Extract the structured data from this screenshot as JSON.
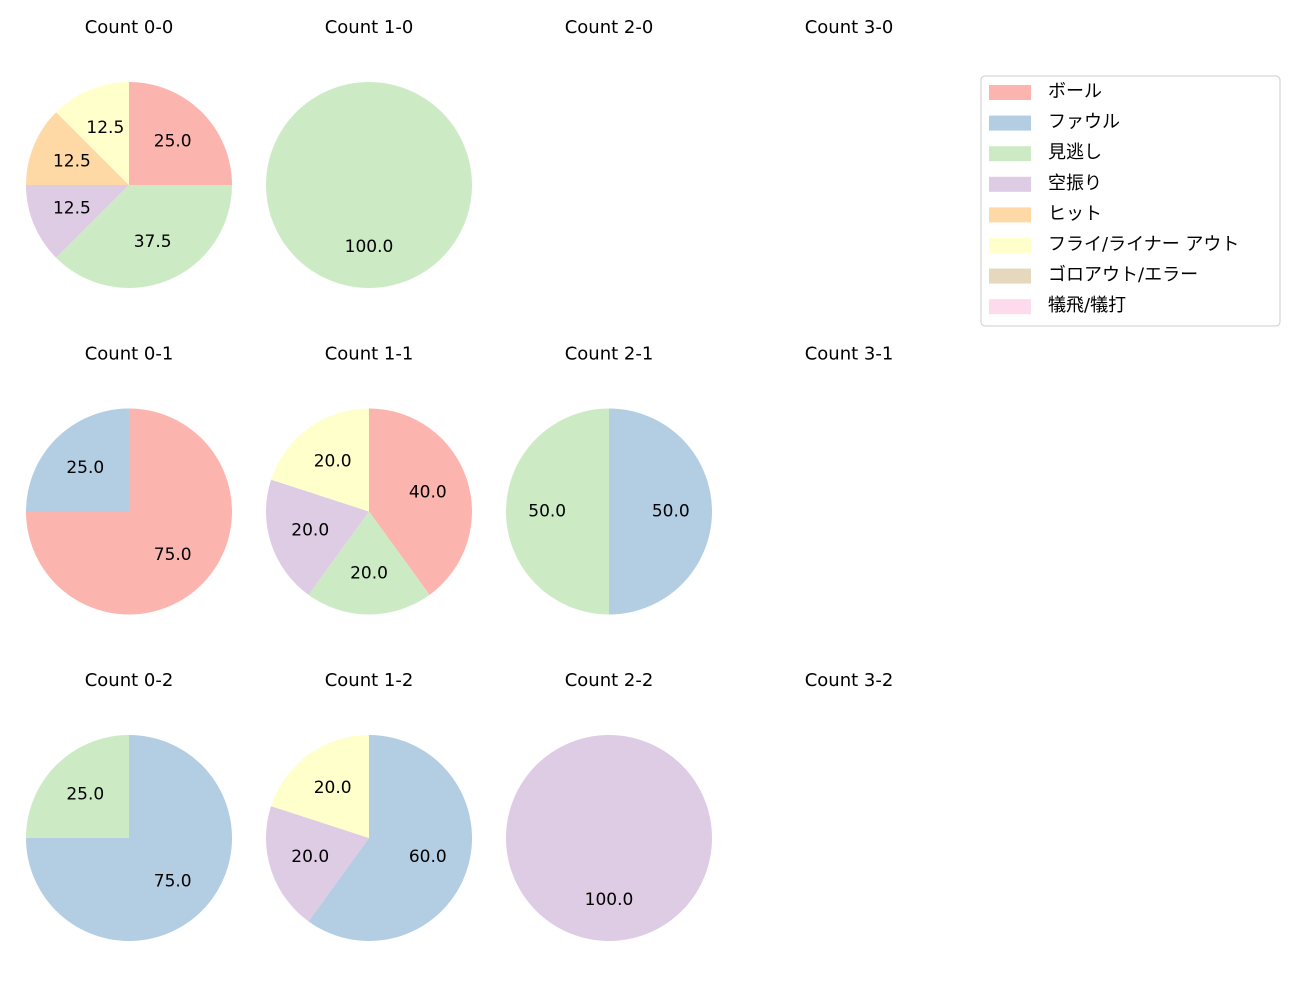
{
  "chart_data": [
    {
      "type": "pie",
      "title": "Count 0-0",
      "categories": [
        "ボール",
        "見逃し",
        "空振り",
        "ヒット",
        "フライ/ライナー アウト"
      ],
      "values": [
        25,
        37.5,
        12.5,
        12.5,
        12.5
      ],
      "value_labels": [
        "25.0",
        "37.5",
        "12.5",
        "12.5",
        "12.5"
      ],
      "colors": [
        "#fbb4ae",
        "#ccebc5",
        "#decbe4",
        "#fed9a6",
        "#ffffcc"
      ]
    },
    {
      "type": "pie",
      "title": "Count 1-0",
      "categories": [
        "見逃し"
      ],
      "values": [
        100
      ],
      "value_labels": [
        "100.0"
      ],
      "colors": [
        "#ccebc5"
      ]
    },
    {
      "type": "pie",
      "title": "Count 2-0"
    },
    {
      "type": "pie",
      "title": "Count 3-0"
    },
    {
      "type": "pie",
      "title": "Count 0-1",
      "categories": [
        "ボール",
        "ファウル"
      ],
      "values": [
        75,
        25
      ],
      "value_labels": [
        "75.0",
        "25.0"
      ],
      "colors": [
        "#fbb4ae",
        "#b3cde3"
      ]
    },
    {
      "type": "pie",
      "title": "Count 1-1",
      "categories": [
        "ボール",
        "見逃し",
        "空振り",
        "フライ/ライナー アウト"
      ],
      "values": [
        40,
        20,
        20,
        20
      ],
      "value_labels": [
        "40.0",
        "20.0",
        "20.0",
        "20.0"
      ],
      "colors": [
        "#fbb4ae",
        "#ccebc5",
        "#decbe4",
        "#ffffcc"
      ]
    },
    {
      "type": "pie",
      "title": "Count 2-1",
      "categories": [
        "ファウル",
        "見逃し"
      ],
      "values": [
        50,
        50
      ],
      "value_labels": [
        "50.0",
        "50.0"
      ],
      "colors": [
        "#b3cde3",
        "#ccebc5"
      ]
    },
    {
      "type": "pie",
      "title": "Count 3-1"
    },
    {
      "type": "pie",
      "title": "Count 0-2",
      "categories": [
        "ファウル",
        "見逃し"
      ],
      "values": [
        75,
        25
      ],
      "value_labels": [
        "75.0",
        "25.0"
      ],
      "colors": [
        "#b3cde3",
        "#ccebc5"
      ]
    },
    {
      "type": "pie",
      "title": "Count 1-2",
      "categories": [
        "ファウル",
        "空振り",
        "フライ/ライナー アウト"
      ],
      "values": [
        60,
        20,
        20
      ],
      "value_labels": [
        "60.0",
        "20.0",
        "20.0"
      ],
      "colors": [
        "#b3cde3",
        "#decbe4",
        "#ffffcc"
      ]
    },
    {
      "type": "pie",
      "title": "Count 2-2",
      "categories": [
        "空振り"
      ],
      "values": [
        100
      ],
      "value_labels": [
        "100.0"
      ],
      "colors": [
        "#decbe4"
      ]
    },
    {
      "type": "pie",
      "title": "Count 3-2"
    }
  ],
  "legend": {
    "items": [
      {
        "name": "ボール",
        "color": "#fbb4ae"
      },
      {
        "name": "ファウル",
        "color": "#b3cde3"
      },
      {
        "name": "見逃し",
        "color": "#ccebc5"
      },
      {
        "name": "空振り",
        "color": "#decbe4"
      },
      {
        "name": "ヒット",
        "color": "#fed9a6"
      },
      {
        "name": "フライ/ライナー アウト",
        "color": "#ffffcc"
      },
      {
        "name": "ゴロアウト/エラー",
        "color": "#e5d8bd"
      },
      {
        "name": "犠飛/犠打",
        "color": "#fddaec"
      }
    ]
  }
}
